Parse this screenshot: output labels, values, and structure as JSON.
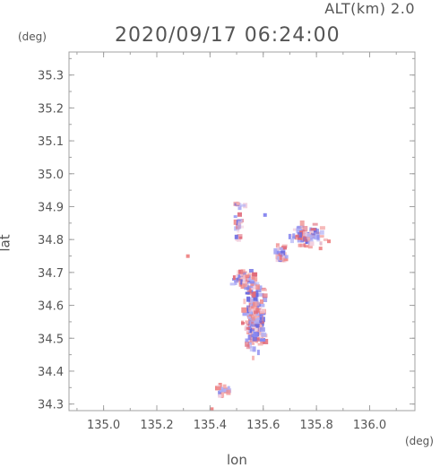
{
  "header": {
    "altitude_label": "ALT(km)  2.0",
    "timestamp": "2020/09/17 06:24:00"
  },
  "chart_data": {
    "type": "heatmap",
    "xlabel": "lon",
    "ylabel": "lat",
    "x_unit": "(deg)",
    "y_unit": "(deg)",
    "xlim": [
      134.87,
      136.17
    ],
    "ylim": [
      34.28,
      35.37
    ],
    "x_ticks": [
      "135.0",
      "135.2",
      "135.4",
      "135.6",
      "135.8",
      "136.0"
    ],
    "y_ticks": [
      "34.3",
      "34.4",
      "34.5",
      "34.6",
      "34.7",
      "34.8",
      "34.9",
      "35.0",
      "35.1",
      "35.2",
      "35.3"
    ],
    "grid": false,
    "colors": {
      "positive": "#ef8a8a",
      "negative": "#8a8af0",
      "neutral": "#f2d0e0",
      "axis": "#a0a0a0"
    },
    "clusters": [
      {
        "lon": 135.56,
        "lat": 34.57,
        "spread_lon": 0.05,
        "spread_lat": 0.13,
        "count": 260
      },
      {
        "lon": 135.52,
        "lat": 34.68,
        "spread_lon": 0.06,
        "spread_lat": 0.04,
        "count": 90
      },
      {
        "lon": 135.76,
        "lat": 34.82,
        "spread_lon": 0.08,
        "spread_lat": 0.05,
        "count": 90
      },
      {
        "lon": 135.66,
        "lat": 34.76,
        "spread_lon": 0.03,
        "spread_lat": 0.04,
        "count": 35
      },
      {
        "lon": 135.5,
        "lat": 34.84,
        "spread_lon": 0.02,
        "spread_lat": 0.06,
        "count": 20
      },
      {
        "lon": 135.45,
        "lat": 34.35,
        "spread_lon": 0.04,
        "spread_lat": 0.02,
        "count": 20
      },
      {
        "lon": 135.5,
        "lat": 34.91,
        "spread_lon": 0.03,
        "spread_lat": 0.01,
        "count": 10
      }
    ]
  }
}
